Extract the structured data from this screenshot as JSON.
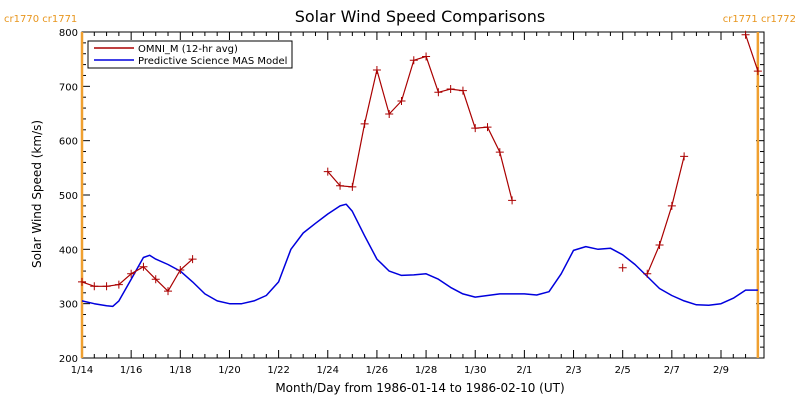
{
  "chart_data": {
    "type": "line",
    "title": "Solar Wind Speed Comparisons",
    "xlabel": "Month/Day from 1986-01-14 to 1986-02-10 (UT)",
    "ylabel": "Solar Wind Speed (km/s)",
    "xlim": [
      "1986-01-14",
      "1986-02-10 18:00"
    ],
    "ylim": [
      200,
      800
    ],
    "x_ticks": [
      "1/14",
      "1/16",
      "1/18",
      "1/20",
      "1/22",
      "1/24",
      "1/26",
      "1/28",
      "1/30",
      "2/1",
      "2/3",
      "2/5",
      "2/7",
      "2/9"
    ],
    "y_ticks": [
      200,
      300,
      400,
      500,
      600,
      700,
      800
    ],
    "grid": false,
    "legend_position": "top-left",
    "carrington_rotations": [
      {
        "date": "1986-01-14",
        "labels": [
          "cr1770",
          "cr1771"
        ]
      },
      {
        "date": "1986-02-10 12:00",
        "labels": [
          "cr1771",
          "cr1772"
        ]
      }
    ],
    "colors": {
      "omni": "#aa0000",
      "model": "#0000dd",
      "boundary": "#f0a030"
    },
    "series": [
      {
        "name": "OMNI_M (12-hr avg)",
        "style": "line-with-plus-markers",
        "segments": [
          [
            [
              "1986-01-14 00:00",
              340
            ],
            [
              "1986-01-14 12:00",
              332
            ],
            [
              "1986-01-15 00:00",
              332
            ],
            [
              "1986-01-15 12:00",
              335
            ],
            [
              "1986-01-16 00:00",
              355
            ],
            [
              "1986-01-16 12:00",
              368
            ],
            [
              "1986-01-17 00:00",
              345
            ],
            [
              "1986-01-17 12:00",
              323
            ],
            [
              "1986-01-18 00:00",
              362
            ],
            [
              "1986-01-18 12:00",
              382
            ]
          ],
          [
            [
              "1986-01-24 00:00",
              543
            ],
            [
              "1986-01-24 12:00",
              517
            ],
            [
              "1986-01-25 00:00",
              515
            ],
            [
              "1986-01-25 12:00",
              631
            ],
            [
              "1986-01-26 00:00",
              730
            ],
            [
              "1986-01-26 12:00",
              649
            ],
            [
              "1986-01-27 00:00",
              673
            ],
            [
              "1986-01-27 12:00",
              748
            ],
            [
              "1986-01-28 00:00",
              755
            ],
            [
              "1986-01-28 12:00",
              689
            ],
            [
              "1986-01-29 00:00",
              695
            ],
            [
              "1986-01-29 12:00",
              692
            ],
            [
              "1986-01-30 00:00",
              623
            ],
            [
              "1986-01-30 12:00",
              625
            ],
            [
              "1986-01-31 00:00",
              579
            ],
            [
              "1986-01-31 12:00",
              490
            ]
          ],
          [
            [
              "1986-02-05 00:00",
              366
            ]
          ],
          [
            [
              "1986-02-06 00:00",
              355
            ],
            [
              "1986-02-06 12:00",
              408
            ],
            [
              "1986-02-07 00:00",
              480
            ],
            [
              "1986-02-07 12:00",
              571
            ]
          ],
          [
            [
              "1986-02-10 00:00",
              795
            ],
            [
              "1986-02-10 12:00",
              728
            ]
          ]
        ]
      },
      {
        "name": "Predictive Science MAS Model",
        "style": "line",
        "points": [
          [
            "1986-01-14 00:00",
            305
          ],
          [
            "1986-01-14 12:00",
            300
          ],
          [
            "1986-01-15 00:00",
            296
          ],
          [
            "1986-01-15 06:00",
            295
          ],
          [
            "1986-01-15 12:00",
            305
          ],
          [
            "1986-01-16 00:00",
            345
          ],
          [
            "1986-01-16 12:00",
            385
          ],
          [
            "1986-01-16 18:00",
            389
          ],
          [
            "1986-01-17 00:00",
            382
          ],
          [
            "1986-01-17 12:00",
            372
          ],
          [
            "1986-01-18 00:00",
            360
          ],
          [
            "1986-01-18 12:00",
            340
          ],
          [
            "1986-01-19 00:00",
            318
          ],
          [
            "1986-01-19 12:00",
            305
          ],
          [
            "1986-01-20 00:00",
            300
          ],
          [
            "1986-01-20 12:00",
            300
          ],
          [
            "1986-01-21 00:00",
            305
          ],
          [
            "1986-01-21 12:00",
            315
          ],
          [
            "1986-01-22 00:00",
            340
          ],
          [
            "1986-01-22 12:00",
            400
          ],
          [
            "1986-01-23 00:00",
            430
          ],
          [
            "1986-01-23 12:00",
            448
          ],
          [
            "1986-01-24 00:00",
            465
          ],
          [
            "1986-01-24 12:00",
            480
          ],
          [
            "1986-01-24 18:00",
            483
          ],
          [
            "1986-01-25 00:00",
            470
          ],
          [
            "1986-01-25 12:00",
            425
          ],
          [
            "1986-01-26 00:00",
            382
          ],
          [
            "1986-01-26 12:00",
            360
          ],
          [
            "1986-01-27 00:00",
            352
          ],
          [
            "1986-01-27 12:00",
            353
          ],
          [
            "1986-01-28 00:00",
            355
          ],
          [
            "1986-01-28 12:00",
            345
          ],
          [
            "1986-01-29 00:00",
            330
          ],
          [
            "1986-01-29 12:00",
            318
          ],
          [
            "1986-01-30 00:00",
            312
          ],
          [
            "1986-01-30 12:00",
            315
          ],
          [
            "1986-01-31 00:00",
            318
          ],
          [
            "1986-02-01 00:00",
            318
          ],
          [
            "1986-02-01 12:00",
            316
          ],
          [
            "1986-02-02 00:00",
            322
          ],
          [
            "1986-02-02 12:00",
            355
          ],
          [
            "1986-02-03 00:00",
            398
          ],
          [
            "1986-02-03 12:00",
            405
          ],
          [
            "1986-02-04 00:00",
            400
          ],
          [
            "1986-02-04 12:00",
            402
          ],
          [
            "1986-02-05 00:00",
            390
          ],
          [
            "1986-02-05 12:00",
            372
          ],
          [
            "1986-02-06 00:00",
            350
          ],
          [
            "1986-02-06 12:00",
            328
          ],
          [
            "1986-02-07 00:00",
            315
          ],
          [
            "1986-02-07 12:00",
            305
          ],
          [
            "1986-02-08 00:00",
            298
          ],
          [
            "1986-02-08 12:00",
            297
          ],
          [
            "1986-02-09 00:00",
            300
          ],
          [
            "1986-02-09 12:00",
            310
          ],
          [
            "1986-02-10 00:00",
            325
          ],
          [
            "1986-02-10 12:00",
            325
          ]
        ]
      }
    ]
  }
}
